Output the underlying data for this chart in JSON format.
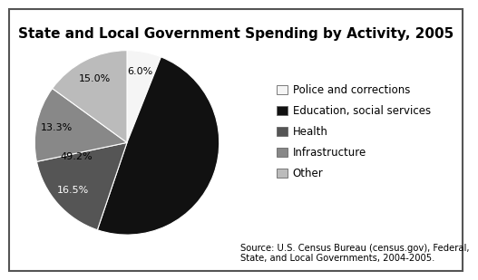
{
  "title": "State and Local Government Spending by Activity, 2005",
  "slices": [
    {
      "label": "Police and corrections",
      "value": 6.0,
      "color": "#f5f5f5"
    },
    {
      "label": "Education, social services",
      "value": 49.2,
      "color": "#111111"
    },
    {
      "label": "Health",
      "value": 16.5,
      "color": "#555555"
    },
    {
      "label": "Infrastructure",
      "value": 13.3,
      "color": "#888888"
    },
    {
      "label": "Other",
      "value": 15.0,
      "color": "#bbbbbb"
    }
  ],
  "source_text": "Source: U.S. Census Bureau (census.gov), Federal,\nState, and Local Governments, 2004-2005.",
  "background_color": "#ffffff",
  "title_fontsize": 11,
  "legend_fontsize": 8.5,
  "source_fontsize": 7.2,
  "pct_label_colors": [
    "#000000",
    "#ffffff",
    "#ffffff",
    "#000000",
    "#000000"
  ]
}
